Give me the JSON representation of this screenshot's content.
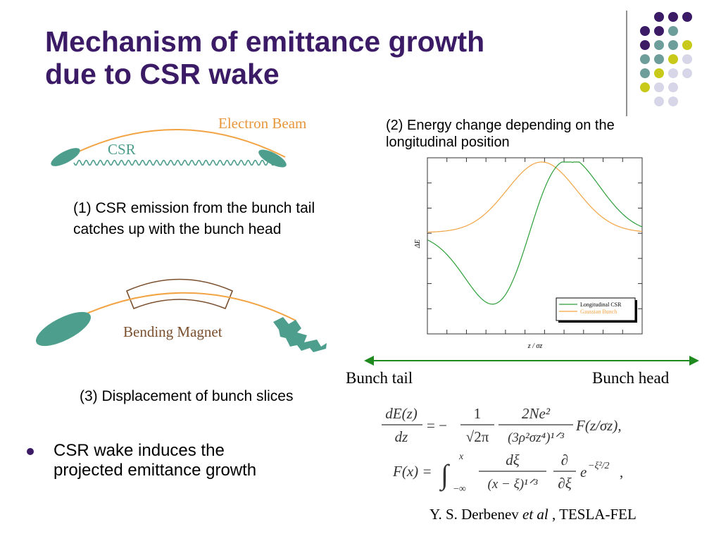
{
  "slide": {
    "title_line1": "Mechanism of emittance growth",
    "title_line2": "due to CSR wake",
    "colors": {
      "title": "#3b1a66",
      "purple_dot": "#3b1a66",
      "teal_dot": "#6e9e9a",
      "yellow_dot": "#c9c91a",
      "lavender_dot": "#d6d6e8",
      "bunch_teal": "#4e9e8e",
      "beam_orange": "#f2a444",
      "magnet_brown": "#7a4f2e",
      "csr_green": "#2e9e3a",
      "arrow_green": "#1f8a1f"
    }
  },
  "diagram1": {
    "electron_beam_label": "Electron Beam",
    "csr_label": "CSR",
    "caption_line1": "(1) CSR emission from the bunch tail",
    "caption_line2": "catches up with the bunch head"
  },
  "diagram2": {
    "magnet_label": "Bending Magnet",
    "caption": "(3) Displacement of bunch slices"
  },
  "energy_plot": {
    "caption_line1": "(2) Energy change depending on the",
    "caption_line2": "longitudinal position",
    "ylabel": "ΔE",
    "xlabel": "z / σz",
    "legend_csr": "Longitudinal CSR",
    "legend_gauss": "Gaussian Bunch"
  },
  "arrow": {
    "left_label": "Bunch tail",
    "right_label": "Bunch head"
  },
  "bullet": {
    "line1": "CSR wake induces the",
    "line2": "projected emittance growth"
  },
  "equations": {
    "eq1_lhs_num": "dE(z)",
    "eq1_lhs_den": "dz",
    "eq1_c_num": "1",
    "eq1_c_den": "√2π",
    "eq1_f_num": "2Ne²",
    "eq1_f_den": "(3ρ²σz⁴)¹ᐟ³",
    "eq1_tail": "F(z/σz),",
    "eq2_lhs": "F(x) =",
    "eq2_int_upper": "x",
    "eq2_int_lower": "−∞",
    "eq2_frac_num": "dξ",
    "eq2_frac_den": "(x − ξ)¹ᐟ³",
    "eq2_pd_num": "∂",
    "eq2_pd_den": "∂ξ",
    "eq2_exp": "e",
    "eq2_exp_sup": "−ξ²/2",
    "eq2_tail": ","
  },
  "reference": {
    "author": "Y. S. Derbenev",
    "etal": "et al",
    "rest": " , TESLA-FEL"
  }
}
